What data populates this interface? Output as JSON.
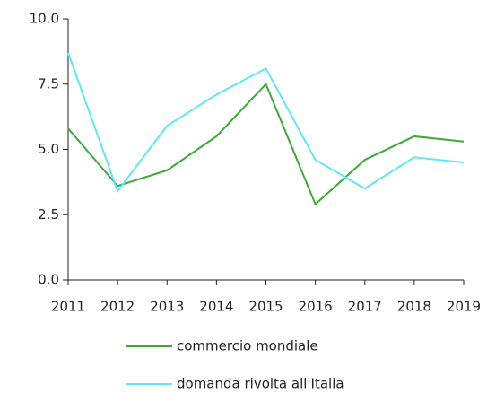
{
  "chart_data": {
    "type": "line",
    "categories": [
      "2011",
      "2012",
      "2013",
      "2014",
      "2015",
      "2016",
      "2017",
      "2018",
      "2019"
    ],
    "series": [
      {
        "name": "commercio mondiale",
        "color": "#3aaa35",
        "values": [
          5.8,
          3.6,
          4.2,
          5.5,
          7.5,
          2.9,
          4.6,
          5.5,
          5.3
        ]
      },
      {
        "name": "domanda rivolta all'Italia",
        "color": "#5ce8f5",
        "values": [
          8.7,
          3.4,
          5.9,
          7.1,
          8.1,
          4.6,
          3.5,
          4.7,
          4.5
        ]
      }
    ],
    "ylim": [
      0,
      10
    ],
    "yticks": [
      {
        "value": 0,
        "label": "0.0"
      },
      {
        "value": 2.5,
        "label": "2.5"
      },
      {
        "value": 5,
        "label": "5.0"
      },
      {
        "value": 7.5,
        "label": "7.5"
      },
      {
        "value": 10,
        "label": "10.0"
      }
    ],
    "grid": false
  }
}
